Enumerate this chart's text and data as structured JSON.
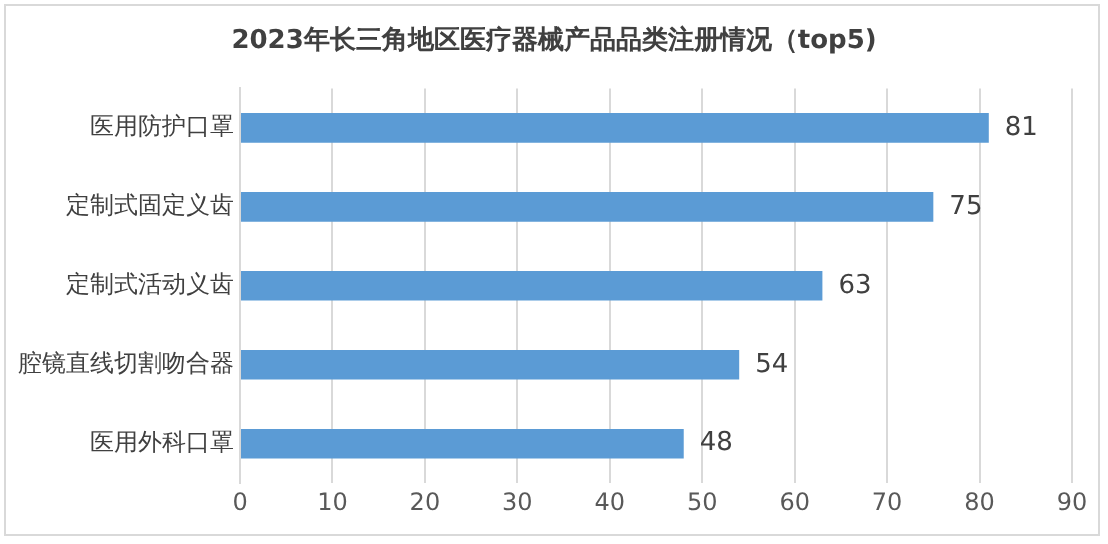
{
  "chart_data": {
    "type": "bar",
    "orientation": "horizontal",
    "title": "2023年长三角地区医疗器械产品品类注册情况（top5)",
    "categories": [
      "医用防护口罩",
      "定制式固定义齿",
      "定制式活动义齿",
      "腔镜直线切割吻合器",
      "医用外科口罩"
    ],
    "values": [
      81,
      75,
      63,
      54,
      48
    ],
    "color": "#5b9bd5",
    "xlim": [
      0,
      90
    ],
    "xticks": [
      0,
      10,
      20,
      30,
      40,
      50,
      60,
      70,
      80,
      90
    ],
    "grid": "x",
    "data_labels": true
  }
}
